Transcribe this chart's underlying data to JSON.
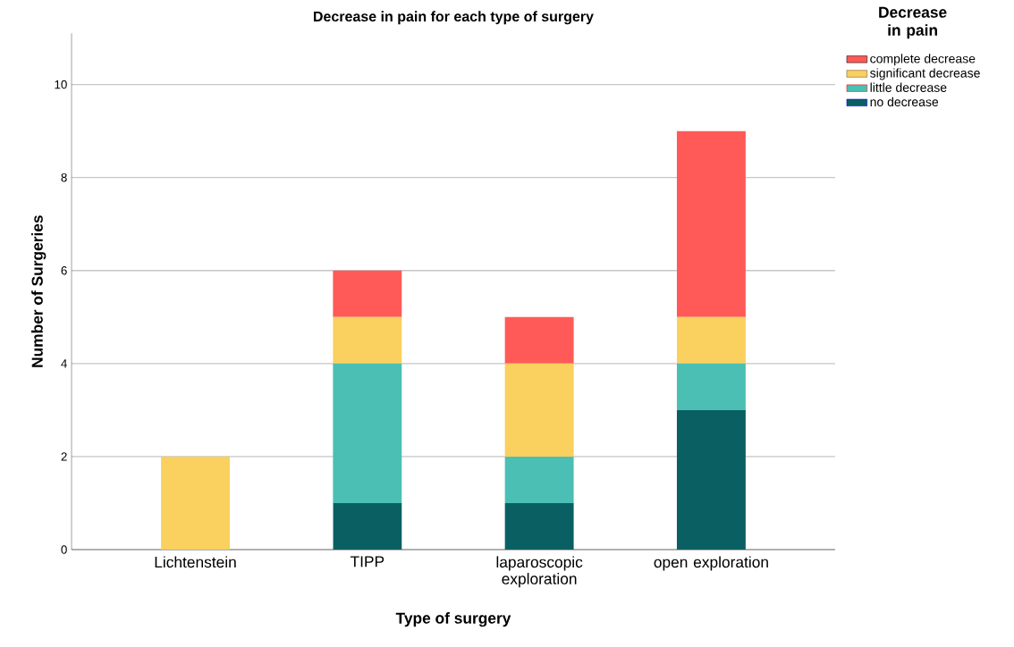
{
  "chart_data": {
    "type": "bar",
    "title": "Decrease in pain for each type of surgery",
    "xlabel": "Type of surgery",
    "ylabel": "Number of Surgeries",
    "legend_title": "Decrease in pain",
    "categories": [
      "Lichtenstein",
      "TIPP",
      "laparoscopic exploration",
      "open exploration"
    ],
    "stacked": true,
    "series": [
      {
        "name": "no decrease",
        "color": "#0a5f63",
        "values": [
          0,
          1,
          1,
          3
        ]
      },
      {
        "name": "little decrease",
        "color": "#4bbfb4",
        "values": [
          0,
          3,
          1,
          1
        ]
      },
      {
        "name": "significant decrease",
        "color": "#fad05e",
        "values": [
          2,
          1,
          2,
          1
        ]
      },
      {
        "name": "complete decrease",
        "color": "#ff5a57",
        "values": [
          0,
          1,
          1,
          4
        ]
      }
    ],
    "ylim": [
      0,
      11.1
    ],
    "yticks": [
      0,
      2,
      4,
      6,
      8,
      10
    ],
    "grid": "y",
    "legend": "top right"
  }
}
